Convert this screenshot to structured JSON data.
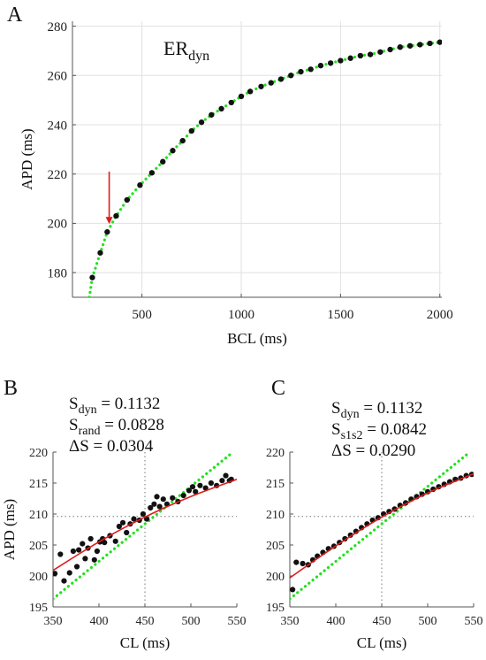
{
  "chart_data": [
    {
      "panel": "A",
      "type": "scatter",
      "panel_letter": "A",
      "annotation": {
        "main": "ER",
        "sub": "dyn"
      },
      "xlabel": "BCL (ms)",
      "ylabel": "APD (ms)",
      "xlim": [
        150,
        2010
      ],
      "ylim": [
        170,
        282
      ],
      "xticks": [
        500,
        1000,
        1500,
        2000
      ],
      "yticks": [
        180,
        200,
        220,
        240,
        260,
        280
      ],
      "xtick_labels": [
        "500",
        "1000",
        "1500",
        "2000"
      ],
      "ytick_labels": [
        "180",
        "200",
        "220",
        "240",
        "260",
        "280"
      ],
      "grid": true,
      "points": [
        [
          250,
          178
        ],
        [
          290,
          188
        ],
        [
          325,
          196.5
        ],
        [
          370,
          203
        ],
        [
          425,
          209.5
        ],
        [
          490,
          215.5
        ],
        [
          550,
          220.5
        ],
        [
          605,
          225
        ],
        [
          655,
          229.5
        ],
        [
          705,
          233.5
        ],
        [
          750,
          237.5
        ],
        [
          800,
          241
        ],
        [
          850,
          244
        ],
        [
          900,
          246.5
        ],
        [
          950,
          249
        ],
        [
          1000,
          251.5
        ],
        [
          1045,
          253.5
        ],
        [
          1100,
          255.5
        ],
        [
          1150,
          257
        ],
        [
          1200,
          258.5
        ],
        [
          1250,
          260
        ],
        [
          1300,
          261.5
        ],
        [
          1350,
          262.5
        ],
        [
          1400,
          264
        ],
        [
          1450,
          265
        ],
        [
          1500,
          266
        ],
        [
          1550,
          267
        ],
        [
          1600,
          268
        ],
        [
          1650,
          268.5
        ],
        [
          1700,
          269.5
        ],
        [
          1750,
          270.5
        ],
        [
          1800,
          271.5
        ],
        [
          1850,
          272
        ],
        [
          1900,
          272.5
        ],
        [
          1950,
          273
        ],
        [
          2000,
          273.5
        ]
      ],
      "fit": {
        "color": "#22e01e",
        "style": "dotted"
      },
      "arrow": {
        "x": 335,
        "y_from": 221,
        "y_to": 199,
        "color": "#e11a1a"
      }
    },
    {
      "panel": "B",
      "type": "scatter",
      "panel_letter": "B",
      "stats": [
        {
          "main": "S",
          "sub": "dyn",
          "rest": " = 0.1132"
        },
        {
          "main": "S",
          "sub": "rand",
          "rest": " = 0.0828"
        },
        {
          "main": "ΔS",
          "sub": "",
          "rest": " = 0.0304"
        }
      ],
      "xlabel": "CL (ms)",
      "ylabel": "APD (ms)",
      "xlim": [
        350,
        550
      ],
      "ylim": [
        195,
        220
      ],
      "xticks": [
        350,
        400,
        450,
        500,
        550
      ],
      "yticks": [
        195,
        200,
        205,
        210,
        215,
        220
      ],
      "xtick_labels": [
        "350",
        "400",
        "450",
        "500",
        "550"
      ],
      "ytick_labels": [
        "195",
        "200",
        "205",
        "210",
        "215",
        "220"
      ],
      "crosshair": {
        "x": 450,
        "y": 209.6
      },
      "points": [
        [
          352,
          200.4
        ],
        [
          358,
          203.5
        ],
        [
          362,
          199.2
        ],
        [
          368,
          200.5
        ],
        [
          372,
          204
        ],
        [
          376,
          201.5
        ],
        [
          378,
          204.2
        ],
        [
          382,
          205.2
        ],
        [
          385,
          202.8
        ],
        [
          388,
          204.5
        ],
        [
          391,
          206
        ],
        [
          395,
          202.6
        ],
        [
          398,
          204
        ],
        [
          401,
          205.5
        ],
        [
          404,
          206
        ],
        [
          406,
          205.4
        ],
        [
          412,
          206.5
        ],
        [
          418,
          205.6
        ],
        [
          422,
          208
        ],
        [
          426,
          208.6
        ],
        [
          430,
          207
        ],
        [
          434,
          208.4
        ],
        [
          438,
          209.2
        ],
        [
          444,
          209
        ],
        [
          448,
          210
        ],
        [
          452,
          209.2
        ],
        [
          456,
          211
        ],
        [
          460,
          211.6
        ],
        [
          463,
          212.8
        ],
        [
          466,
          211.2
        ],
        [
          470,
          212.4
        ],
        [
          474,
          211.6
        ],
        [
          480,
          212.6
        ],
        [
          486,
          212
        ],
        [
          492,
          213
        ],
        [
          498,
          213.8
        ],
        [
          502,
          214.4
        ],
        [
          505,
          213.6
        ],
        [
          510,
          214.6
        ],
        [
          516,
          214.2
        ],
        [
          522,
          215
        ],
        [
          528,
          214.6
        ],
        [
          534,
          215.4
        ],
        [
          538,
          216.2
        ],
        [
          542,
          215.4
        ],
        [
          544,
          215.6
        ]
      ],
      "fit_curve": [
        [
          350,
          200.9
        ],
        [
          400,
          205.6
        ],
        [
          450,
          209.6
        ],
        [
          500,
          212.9
        ],
        [
          550,
          215.6
        ]
      ],
      "identity_line": [
        [
          350,
          196.3
        ],
        [
          545,
          219.9
        ]
      ]
    },
    {
      "panel": "C",
      "type": "scatter",
      "panel_letter": "C",
      "stats": [
        {
          "main": "S",
          "sub": "dyn",
          "rest": " = 0.1132"
        },
        {
          "main": "S",
          "sub": "s1s2",
          "rest": " = 0.0842"
        },
        {
          "main": "ΔS",
          "sub": "",
          "rest": " = 0.0290"
        }
      ],
      "xlabel": "CL (ms)",
      "ylabel": "",
      "xlim": [
        350,
        550
      ],
      "ylim": [
        195,
        220
      ],
      "xticks": [
        350,
        400,
        450,
        500,
        550
      ],
      "yticks": [
        195,
        200,
        205,
        210,
        215,
        220
      ],
      "xtick_labels": [
        "350",
        "400",
        "450",
        "500",
        "550"
      ],
      "ytick_labels": [
        "195",
        "200",
        "205",
        "210",
        "215",
        "220"
      ],
      "crosshair": {
        "x": 450,
        "y": 209.6
      },
      "points": [
        [
          353,
          197.8
        ],
        [
          357,
          202.2
        ],
        [
          364,
          202
        ],
        [
          370,
          201.8
        ],
        [
          375,
          202.6
        ],
        [
          380,
          203.2
        ],
        [
          386,
          203.8
        ],
        [
          392,
          204.4
        ],
        [
          398,
          204.8
        ],
        [
          404,
          205.4
        ],
        [
          410,
          206
        ],
        [
          416,
          206.6
        ],
        [
          422,
          207.2
        ],
        [
          428,
          207.8
        ],
        [
          434,
          208.4
        ],
        [
          440,
          209
        ],
        [
          446,
          209.4
        ],
        [
          452,
          210
        ],
        [
          458,
          210.4
        ],
        [
          464,
          210.8
        ],
        [
          470,
          211.4
        ],
        [
          476,
          211.8
        ],
        [
          482,
          212.4
        ],
        [
          488,
          212.8
        ],
        [
          494,
          213.2
        ],
        [
          500,
          213.6
        ],
        [
          506,
          214
        ],
        [
          512,
          214.4
        ],
        [
          518,
          214.8
        ],
        [
          524,
          215.2
        ],
        [
          530,
          215.6
        ],
        [
          536,
          215.8
        ],
        [
          542,
          216.2
        ],
        [
          548,
          216.4
        ]
      ],
      "fit_curve": [
        [
          350,
          199.7
        ],
        [
          400,
          204.9
        ],
        [
          450,
          209.6
        ],
        [
          500,
          213.5
        ],
        [
          550,
          216.5
        ]
      ],
      "identity_line": [
        [
          350,
          196.3
        ],
        [
          545,
          219.9
        ]
      ]
    }
  ],
  "colors": {
    "dots": "#111111",
    "fit_red": "#e11a1a",
    "green_dotted": "#22e01e",
    "axis": "#555555",
    "grid": "#e1e1e1",
    "crosshair": "#777777"
  }
}
